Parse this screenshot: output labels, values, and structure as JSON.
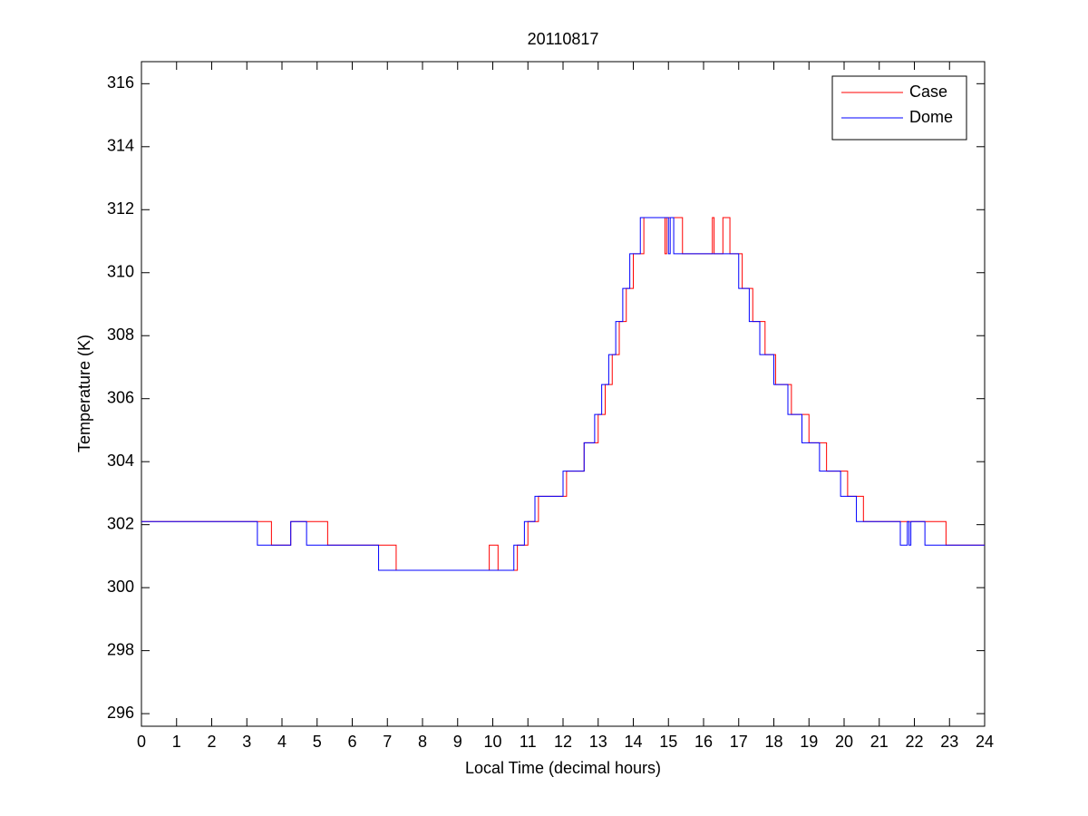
{
  "chart_data": {
    "type": "line",
    "title": "20110817",
    "x_label": "Local Time (decimal hours)",
    "y_label": "Temperature (K)",
    "xlim": [
      0,
      24
    ],
    "xticks": [
      0,
      1,
      2,
      3,
      4,
      5,
      6,
      7,
      8,
      9,
      10,
      11,
      12,
      13,
      14,
      15,
      16,
      17,
      18,
      19,
      20,
      21,
      22,
      23,
      24
    ],
    "ylim": [
      295.6,
      316.7
    ],
    "yticks": [
      296,
      298,
      300,
      302,
      304,
      306,
      308,
      310,
      312,
      314,
      316
    ],
    "legend": "top-right",
    "grid": false,
    "series": [
      {
        "name": "Case",
        "color": "#ff0000",
        "x": [
          0,
          3.7,
          3.7,
          4.25,
          4.25,
          5.3,
          5.3,
          7.25,
          7.25,
          9.9,
          9.9,
          10.15,
          10.15,
          10.7,
          10.7,
          11.0,
          11.0,
          11.3,
          11.3,
          12.1,
          12.1,
          12.6,
          12.6,
          13.0,
          13.0,
          13.2,
          13.2,
          13.4,
          13.4,
          13.6,
          13.6,
          13.8,
          13.8,
          14.0,
          14.0,
          14.3,
          14.3,
          14.9,
          14.9,
          14.95,
          14.95,
          15.4,
          15.4,
          16.25,
          16.25,
          16.3,
          16.3,
          16.55,
          16.55,
          16.75,
          16.75,
          17.1,
          17.1,
          17.4,
          17.4,
          17.75,
          17.75,
          18.05,
          18.05,
          18.5,
          18.5,
          19.0,
          19.0,
          19.5,
          19.5,
          20.1,
          20.1,
          20.55,
          20.55,
          22.9,
          22.9,
          24
        ],
        "values": [
          302.1,
          302.1,
          301.35,
          301.35,
          302.1,
          302.1,
          301.35,
          301.35,
          300.55,
          300.55,
          301.35,
          301.35,
          300.55,
          300.55,
          301.35,
          301.35,
          302.1,
          302.1,
          302.9,
          302.9,
          303.7,
          303.7,
          304.6,
          304.6,
          305.5,
          305.5,
          306.45,
          306.45,
          307.4,
          307.4,
          308.45,
          308.45,
          309.5,
          309.5,
          310.6,
          310.6,
          311.75,
          311.75,
          310.6,
          310.6,
          311.75,
          311.75,
          310.6,
          310.6,
          311.75,
          311.75,
          310.6,
          310.6,
          311.75,
          311.75,
          310.6,
          310.6,
          309.5,
          309.5,
          308.45,
          308.45,
          307.4,
          307.4,
          306.45,
          306.45,
          305.5,
          305.5,
          304.6,
          304.6,
          303.7,
          303.7,
          302.9,
          302.9,
          302.1,
          302.1,
          301.35,
          301.35
        ]
      },
      {
        "name": "Dome",
        "color": "#0000ff",
        "x": [
          0,
          3.3,
          3.3,
          4.25,
          4.25,
          4.7,
          4.7,
          6.75,
          6.75,
          10.6,
          10.6,
          10.9,
          10.9,
          11.2,
          11.2,
          12.0,
          12.0,
          12.6,
          12.6,
          12.9,
          12.9,
          13.1,
          13.1,
          13.3,
          13.3,
          13.5,
          13.5,
          13.7,
          13.7,
          13.9,
          13.9,
          14.2,
          14.2,
          15.0,
          15.0,
          15.05,
          15.05,
          15.15,
          15.15,
          17.0,
          17.0,
          17.3,
          17.3,
          17.6,
          17.6,
          18.0,
          18.0,
          18.4,
          18.4,
          18.8,
          18.8,
          19.3,
          19.3,
          19.9,
          19.9,
          20.35,
          20.35,
          21.6,
          21.6,
          21.8,
          21.8,
          21.85,
          21.85,
          21.9,
          21.9,
          22.3,
          22.3,
          24
        ],
        "values": [
          302.1,
          302.1,
          301.35,
          301.35,
          302.1,
          302.1,
          301.35,
          301.35,
          300.55,
          300.55,
          301.35,
          301.35,
          302.1,
          302.1,
          302.9,
          302.9,
          303.7,
          303.7,
          304.6,
          304.6,
          305.5,
          305.5,
          306.45,
          306.45,
          307.4,
          307.4,
          308.45,
          308.45,
          309.5,
          309.5,
          310.6,
          310.6,
          311.75,
          311.75,
          310.6,
          310.6,
          311.75,
          311.75,
          310.6,
          310.6,
          309.5,
          309.5,
          308.45,
          308.45,
          307.4,
          307.4,
          306.45,
          306.45,
          305.5,
          305.5,
          304.6,
          304.6,
          303.7,
          303.7,
          302.9,
          302.9,
          302.1,
          302.1,
          301.35,
          301.35,
          302.1,
          302.1,
          301.35,
          301.35,
          302.1,
          302.1,
          301.35,
          301.35
        ]
      }
    ]
  }
}
